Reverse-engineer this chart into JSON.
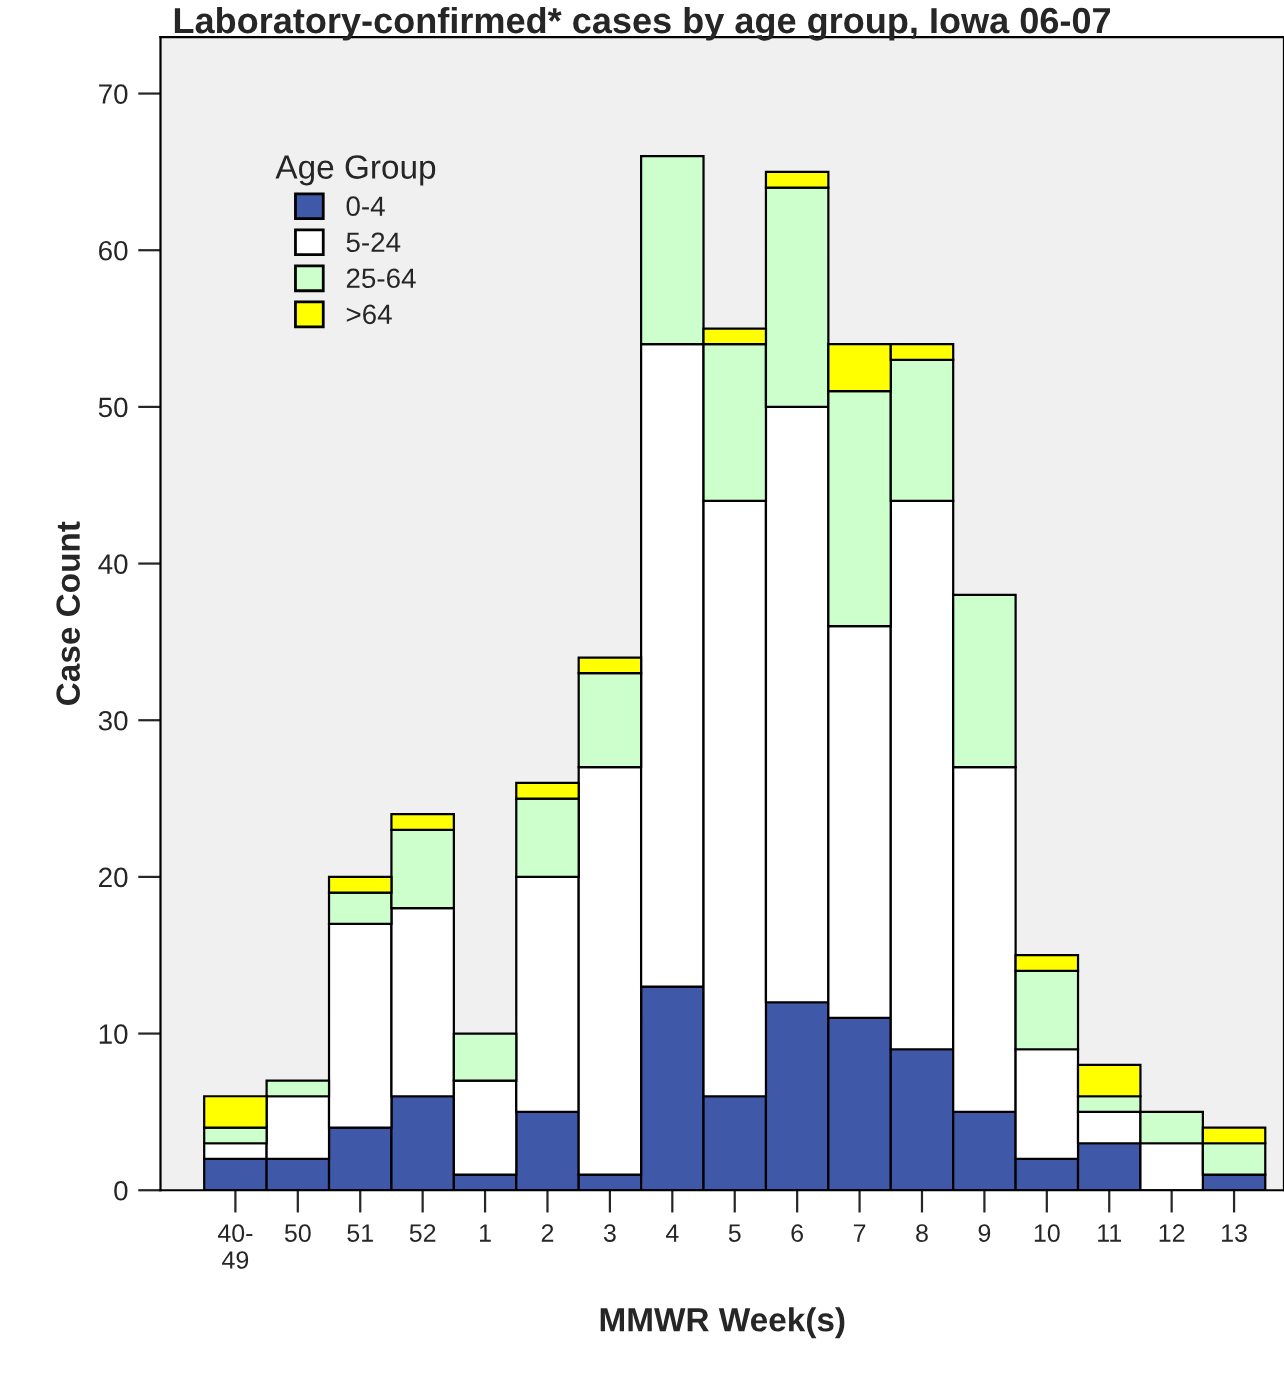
{
  "chart_data": {
    "type": "bar",
    "title": "Laboratory-confirmed* cases by age group, Iowa 06-07",
    "xlabel": "MMWR Week(s)",
    "ylabel": "Case Count",
    "legend_title": "Age Group",
    "categories": [
      "40-\n49",
      "50",
      "51",
      "52",
      "1",
      "2",
      "3",
      "4",
      "5",
      "6",
      "7",
      "8",
      "9",
      "10",
      "11",
      "12",
      "13"
    ],
    "stacked": true,
    "series": [
      {
        "name": "0-4",
        "color": "#3f58a8",
        "values": [
          2,
          2,
          4,
          6,
          1,
          5,
          1,
          13,
          6,
          12,
          11,
          9,
          5,
          2,
          3,
          0,
          1
        ]
      },
      {
        "name": "5-24",
        "color": "#ffffff",
        "values": [
          1,
          4,
          13,
          12,
          6,
          15,
          26,
          41,
          38,
          38,
          25,
          35,
          22,
          7,
          2,
          3,
          0
        ]
      },
      {
        "name": "25-64",
        "color": "#ccffcc",
        "values": [
          1,
          1,
          2,
          5,
          3,
          5,
          6,
          12,
          10,
          14,
          15,
          9,
          11,
          5,
          1,
          2,
          2
        ]
      },
      {
        "name": ">64",
        "color": "#ffff00",
        "values": [
          2,
          0,
          1,
          1,
          0,
          1,
          1,
          0,
          1,
          1,
          3,
          1,
          0,
          1,
          2,
          0,
          1
        ]
      }
    ],
    "ylim": [
      0,
      73.6
    ],
    "yticks": [
      0,
      10,
      20,
      30,
      40,
      50,
      60,
      70
    ],
    "grid": false,
    "legend": "top left"
  }
}
